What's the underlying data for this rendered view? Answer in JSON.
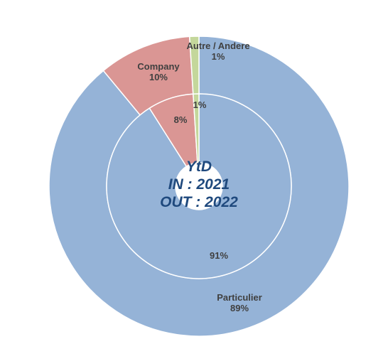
{
  "chart_data": {
    "type": "pie",
    "subtype": "double-donut",
    "center_text": [
      "YtD",
      "IN : 2021",
      "OUT : 2022"
    ],
    "rings": [
      {
        "ring": "outer",
        "slices": [
          {
            "category": "Particulier",
            "value": 89,
            "label": "Particulier",
            "value_label": "89%",
            "color": "#95b3d7"
          },
          {
            "category": "Company",
            "value": 10,
            "label": "Company",
            "value_label": "10%",
            "color": "#da9694"
          },
          {
            "category": "Autre / Andere",
            "value": 1,
            "label": "Autre / Andere",
            "value_label": "1%",
            "color": "#c4d79b"
          }
        ]
      },
      {
        "ring": "inner",
        "slices": [
          {
            "category": "Particulier",
            "value": 91,
            "value_label": "91%",
            "color": "#95b3d7"
          },
          {
            "category": "Company",
            "value": 8,
            "value_label": "8%",
            "color": "#da9694"
          },
          {
            "category": "Autre / Andere",
            "value": 1,
            "value_label": "1%",
            "color": "#c4d79b"
          }
        ]
      }
    ]
  }
}
